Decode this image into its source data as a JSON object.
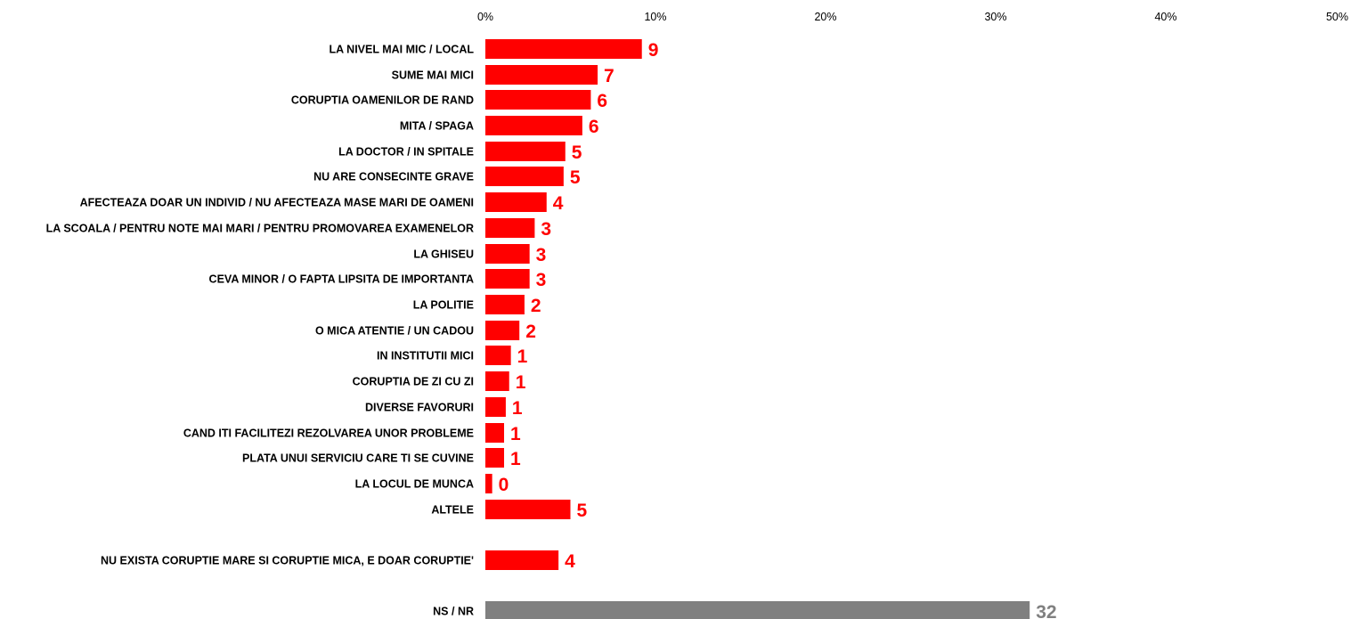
{
  "chart_data": {
    "type": "bar",
    "orientation": "horizontal",
    "title": "",
    "xlabel": "",
    "ylabel": "",
    "xlim": [
      0,
      50
    ],
    "x_ticks": [
      "0%",
      "10%",
      "20%",
      "30%",
      "40%",
      "50%"
    ],
    "grid": false,
    "legend": "none",
    "colors": {
      "main": "#ff0000",
      "nsnr": "#808080"
    },
    "bars": [
      {
        "label": "LA NIVEL MAI MIC / LOCAL",
        "value": 9,
        "bar_value": 9.2,
        "label_text": "9",
        "color": "#ff0000"
      },
      {
        "label": "SUME MAI MICI",
        "value": 7,
        "bar_value": 6.6,
        "label_text": "7",
        "color": "#ff0000"
      },
      {
        "label": "CORUPTIA OAMENILOR DE RAND",
        "value": 6,
        "bar_value": 6.2,
        "label_text": "6",
        "color": "#ff0000"
      },
      {
        "label": "MITA / SPAGA",
        "value": 6,
        "bar_value": 5.7,
        "label_text": "6",
        "color": "#ff0000"
      },
      {
        "label": "LA DOCTOR / IN SPITALE",
        "value": 5,
        "bar_value": 4.7,
        "label_text": "5",
        "color": "#ff0000"
      },
      {
        "label": "NU ARE CONSECINTE GRAVE",
        "value": 5,
        "bar_value": 4.6,
        "label_text": "5",
        "color": "#ff0000"
      },
      {
        "label": "AFECTEAZA DOAR UN INDIVID / NU AFECTEAZA MASE MARI DE OAMENI",
        "value": 4,
        "bar_value": 3.6,
        "label_text": "4",
        "color": "#ff0000"
      },
      {
        "label": "LA SCOALA / PENTRU NOTE MAI MARI / PENTRU PROMOVAREA EXAMENELOR",
        "value": 3,
        "bar_value": 2.9,
        "label_text": "3",
        "color": "#ff0000"
      },
      {
        "label": "LA GHISEU",
        "value": 3,
        "bar_value": 2.6,
        "label_text": "3",
        "color": "#ff0000"
      },
      {
        "label": "CEVA MINOR / O FAPTA LIPSITA DE IMPORTANTA",
        "value": 3,
        "bar_value": 2.6,
        "label_text": "3",
        "color": "#ff0000"
      },
      {
        "label": "LA POLITIE",
        "value": 2,
        "bar_value": 2.3,
        "label_text": "2",
        "color": "#ff0000"
      },
      {
        "label": "O MICA ATENTIE / UN CADOU",
        "value": 2,
        "bar_value": 2.0,
        "label_text": "2",
        "color": "#ff0000"
      },
      {
        "label": "IN INSTITUTII MICI",
        "value": 1,
        "bar_value": 1.5,
        "label_text": "1",
        "color": "#ff0000"
      },
      {
        "label": "CORUPTIA DE ZI CU ZI",
        "value": 1,
        "bar_value": 1.4,
        "label_text": "1",
        "color": "#ff0000"
      },
      {
        "label": "DIVERSE FAVORURI",
        "value": 1,
        "bar_value": 1.2,
        "label_text": "1",
        "color": "#ff0000"
      },
      {
        "label": "CAND ITI FACILITEZI REZOLVAREA UNOR PROBLEME",
        "value": 1,
        "bar_value": 1.1,
        "label_text": "1",
        "color": "#ff0000"
      },
      {
        "label": "PLATA UNUI SERVICIU CARE TI SE CUVINE",
        "value": 1,
        "bar_value": 1.1,
        "label_text": "1",
        "color": "#ff0000"
      },
      {
        "label": "LA LOCUL DE MUNCA",
        "value": 0,
        "bar_value": 0.4,
        "label_text": "0",
        "color": "#ff0000"
      },
      {
        "label": "ALTELE",
        "value": 5,
        "bar_value": 5.0,
        "label_text": "5",
        "color": "#ff0000"
      },
      {
        "label": "NU EXISTA CORUPTIE MARE SI CORUPTIE MICA, E DOAR CORUPTIE'",
        "value": 4,
        "bar_value": 4.3,
        "label_text": "4",
        "color": "#ff0000"
      },
      {
        "label": "NS / NR",
        "value": 32,
        "bar_value": 32.0,
        "label_text": "32",
        "color": "#808080"
      }
    ]
  }
}
